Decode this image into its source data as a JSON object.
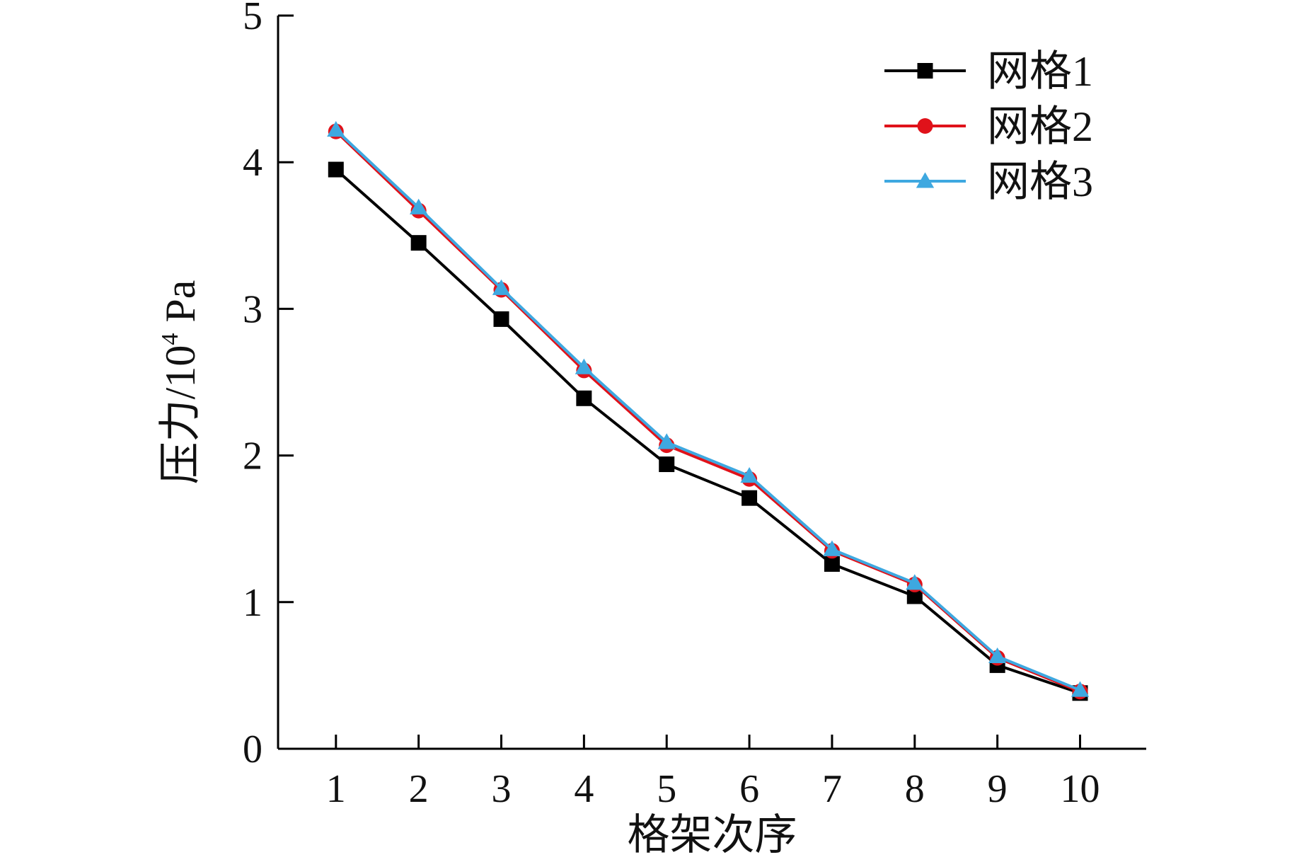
{
  "chart_data": {
    "type": "line",
    "xlabel": "格架次序",
    "ylabel": "压力/10",
    "ylabel_sup": "4",
    "ylabel_unit": " Pa",
    "categories": [
      "1",
      "2",
      "3",
      "4",
      "5",
      "6",
      "7",
      "8",
      "9",
      "10"
    ],
    "x": [
      1,
      2,
      3,
      4,
      5,
      6,
      7,
      8,
      9,
      10
    ],
    "xlim": [
      0.3,
      10.8
    ],
    "ylim": [
      0,
      5
    ],
    "yticks": [
      0,
      1,
      2,
      3,
      4,
      5
    ],
    "grid": false,
    "legend": "top-right",
    "series": [
      {
        "name": "网格1",
        "marker": "square",
        "color": "#000000",
        "values": [
          3.95,
          3.45,
          2.93,
          2.39,
          1.94,
          1.71,
          1.26,
          1.04,
          0.57,
          0.38
        ]
      },
      {
        "name": "网格2",
        "marker": "circle",
        "color": "#e0121a",
        "values": [
          4.21,
          3.67,
          3.13,
          2.58,
          2.07,
          1.84,
          1.35,
          1.12,
          0.62,
          0.39
        ]
      },
      {
        "name": "网格3",
        "marker": "triangle",
        "color": "#3ea8e0",
        "values": [
          4.22,
          3.69,
          3.14,
          2.6,
          2.09,
          1.86,
          1.36,
          1.13,
          0.63,
          0.4
        ]
      }
    ]
  }
}
